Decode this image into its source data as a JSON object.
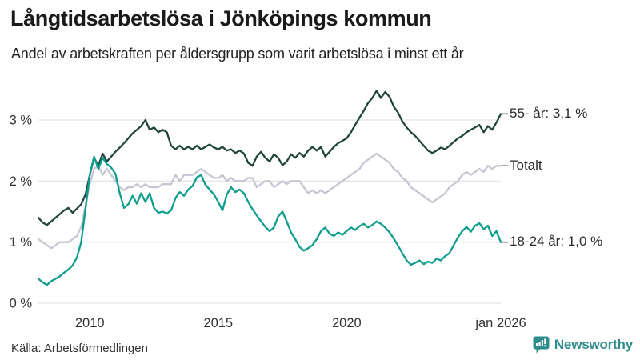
{
  "header": {
    "title": "Långtidsarbetslösa i Jönköpings kommun",
    "subtitle": "Andel av arbetskraften per åldersgrupp som varit arbetslösa i minst ett år"
  },
  "footer": {
    "source": "Källa: Arbetsförmedlingen",
    "brand_name": "Newsworthy",
    "brand_icon": "bar-chart-speech-bubble-icon",
    "brand_color": "#2e8c8a"
  },
  "colors": {
    "grid": "#e4e4e4",
    "axis_text": "#333333",
    "label_text": "#2b2b2b",
    "tick_dash": "#444444"
  },
  "chart_data": {
    "type": "line",
    "title": "Långtidsarbetslösa i Jönköpings kommun",
    "subtitle": "Andel av arbetskraften per åldersgrupp som varit arbetslösa i minst ett år",
    "xlabel": "",
    "ylabel": "",
    "x_unit": "year, monthly-ish samples (6 per year)",
    "xlim": [
      2008,
      2026
    ],
    "ylim": [
      0,
      3.6
    ],
    "grid": "horizontal",
    "legend_position": "right-end-labels",
    "y_ticks": [
      {
        "label": "3 %",
        "value": 3
      },
      {
        "label": "2 %",
        "value": 2
      },
      {
        "label": "1 %",
        "value": 1
      },
      {
        "label": "0 %",
        "value": 0
      }
    ],
    "x_ticks": [
      {
        "label": "2010",
        "year": 2010
      },
      {
        "label": "2015",
        "year": 2015
      },
      {
        "label": "2020",
        "year": 2020
      },
      {
        "label": "jan 2026",
        "year": 2026
      }
    ],
    "series": [
      {
        "id": "totalt",
        "name": "Totalt",
        "end_label": "Totalt",
        "end_value": 2.25,
        "color": "#c8c5d3",
        "values": [
          1.05,
          1.0,
          0.95,
          0.9,
          0.95,
          1.0,
          1.0,
          1.0,
          1.05,
          1.1,
          1.25,
          1.6,
          1.95,
          2.2,
          2.25,
          2.1,
          2.2,
          2.1,
          2.0,
          1.9,
          1.85,
          1.9,
          1.9,
          1.95,
          1.9,
          1.95,
          1.9,
          1.9,
          1.9,
          1.95,
          1.95,
          1.95,
          2.1,
          2.0,
          2.1,
          2.1,
          2.1,
          2.15,
          2.2,
          2.15,
          2.1,
          2.05,
          2.05,
          2.1,
          2.0,
          2.05,
          2.0,
          2.0,
          2.0,
          2.05,
          2.05,
          1.9,
          1.95,
          2.0,
          2.0,
          1.9,
          1.95,
          2.0,
          1.95,
          2.0,
          2.0,
          2.0,
          1.9,
          1.8,
          1.85,
          1.8,
          1.85,
          1.8,
          1.85,
          1.9,
          1.95,
          2.0,
          2.05,
          2.1,
          2.15,
          2.2,
          2.3,
          2.35,
          2.4,
          2.45,
          2.4,
          2.35,
          2.3,
          2.2,
          2.15,
          2.05,
          2.0,
          1.9,
          1.85,
          1.8,
          1.75,
          1.7,
          1.65,
          1.7,
          1.75,
          1.8,
          1.9,
          1.95,
          2.0,
          2.1,
          2.15,
          2.1,
          2.15,
          2.2,
          2.15,
          2.25,
          2.2,
          2.25,
          2.25
        ]
      },
      {
        "id": "55-ar",
        "name": "55- år",
        "end_label": "55- år: 3,1 %",
        "end_value": 3.1,
        "color": "#20453c",
        "values": [
          1.4,
          1.32,
          1.28,
          1.34,
          1.4,
          1.46,
          1.52,
          1.56,
          1.48,
          1.55,
          1.62,
          1.78,
          2.1,
          2.38,
          2.25,
          2.45,
          2.32,
          2.4,
          2.48,
          2.55,
          2.62,
          2.7,
          2.78,
          2.84,
          2.9,
          3.0,
          2.84,
          2.88,
          2.8,
          2.84,
          2.8,
          2.58,
          2.52,
          2.58,
          2.52,
          2.56,
          2.52,
          2.58,
          2.52,
          2.56,
          2.6,
          2.55,
          2.52,
          2.56,
          2.5,
          2.52,
          2.46,
          2.5,
          2.45,
          2.3,
          2.25,
          2.4,
          2.48,
          2.38,
          2.32,
          2.44,
          2.38,
          2.26,
          2.32,
          2.44,
          2.38,
          2.46,
          2.4,
          2.5,
          2.56,
          2.5,
          2.56,
          2.4,
          2.48,
          2.56,
          2.62,
          2.66,
          2.7,
          2.8,
          2.92,
          3.04,
          3.15,
          3.28,
          3.36,
          3.48,
          3.36,
          3.46,
          3.38,
          3.22,
          3.12,
          2.98,
          2.88,
          2.8,
          2.74,
          2.66,
          2.58,
          2.5,
          2.46,
          2.5,
          2.55,
          2.52,
          2.58,
          2.64,
          2.7,
          2.74,
          2.8,
          2.84,
          2.88,
          2.92,
          2.8,
          2.9,
          2.84,
          2.96,
          3.1
        ]
      },
      {
        "id": "18-24-ar",
        "name": "18-24 år",
        "end_label": "18-24 år: 1,0 %",
        "end_value": 1.0,
        "color": "#0d9d8d",
        "values": [
          0.4,
          0.34,
          0.3,
          0.36,
          0.4,
          0.44,
          0.5,
          0.55,
          0.62,
          0.75,
          1.0,
          1.55,
          2.1,
          2.4,
          2.2,
          2.38,
          2.28,
          2.22,
          2.12,
          1.8,
          1.56,
          1.62,
          1.76,
          1.63,
          1.8,
          1.66,
          1.8,
          1.56,
          1.48,
          1.5,
          1.47,
          1.52,
          1.72,
          1.82,
          1.76,
          1.86,
          1.92,
          2.06,
          2.1,
          1.94,
          1.86,
          1.78,
          1.66,
          1.52,
          1.78,
          1.9,
          1.82,
          1.86,
          1.8,
          1.66,
          1.54,
          1.44,
          1.34,
          1.25,
          1.18,
          1.24,
          1.42,
          1.5,
          1.34,
          1.16,
          1.05,
          0.92,
          0.86,
          0.9,
          0.95,
          1.05,
          1.18,
          1.24,
          1.14,
          1.1,
          1.16,
          1.12,
          1.18,
          1.24,
          1.2,
          1.26,
          1.3,
          1.24,
          1.28,
          1.34,
          1.3,
          1.24,
          1.16,
          1.06,
          0.94,
          0.82,
          0.7,
          0.63,
          0.66,
          0.7,
          0.64,
          0.68,
          0.66,
          0.73,
          0.7,
          0.77,
          0.82,
          0.95,
          1.08,
          1.18,
          1.25,
          1.17,
          1.27,
          1.31,
          1.21,
          1.27,
          1.1,
          1.18,
          1.0
        ]
      }
    ]
  }
}
